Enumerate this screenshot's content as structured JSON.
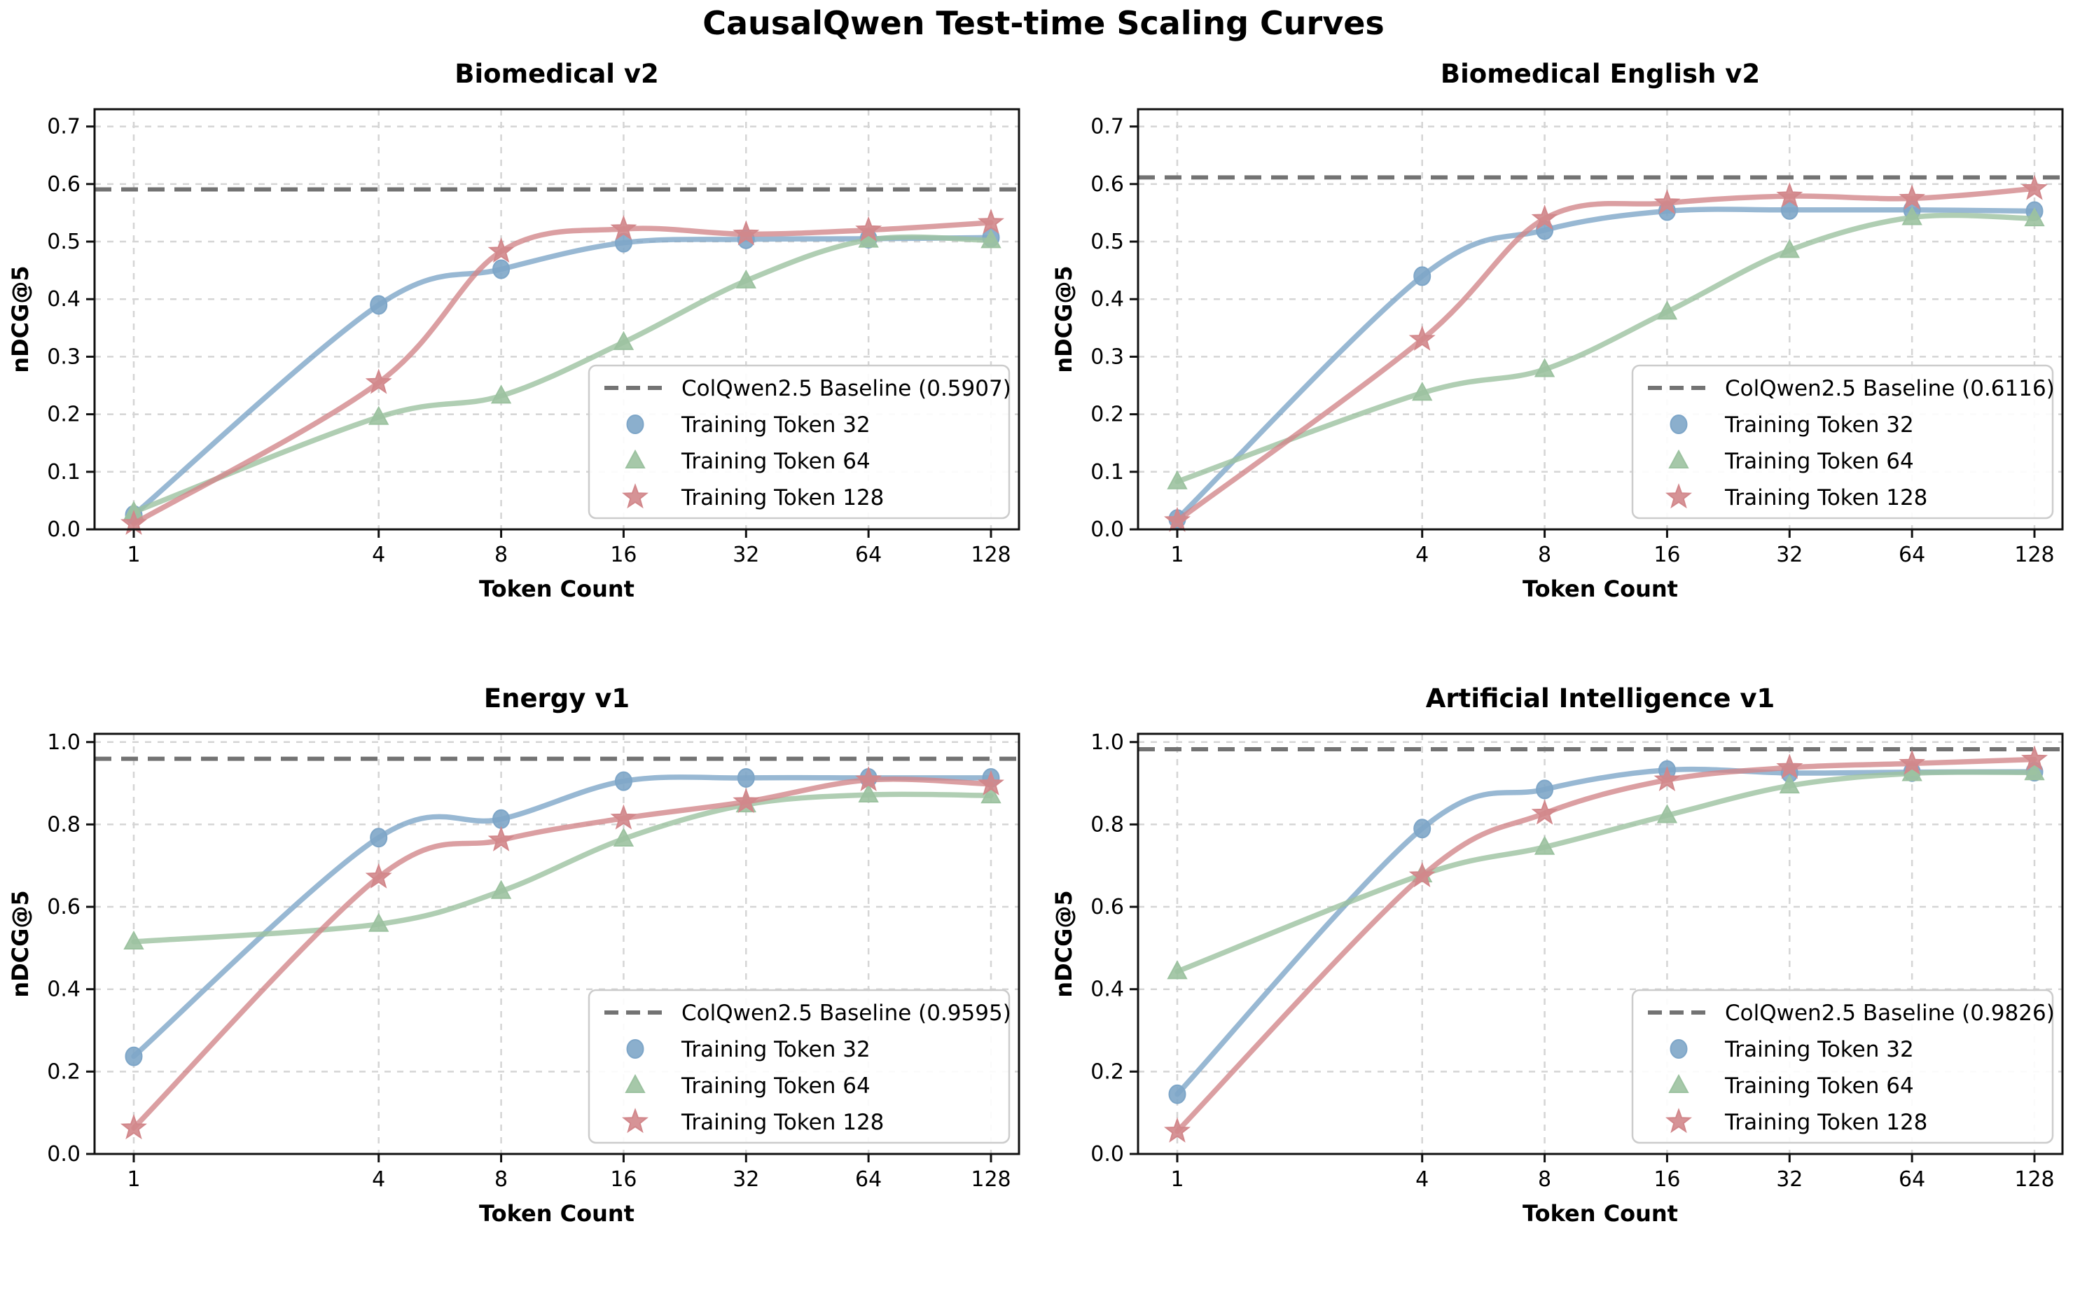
{
  "page_title": "CausalQwen Test-time Scaling Curves",
  "axes": {
    "xlabel": "Token Count",
    "ylabel": "nDCG@5"
  },
  "colors": {
    "token32": "#7EA6C8",
    "token64": "#9CC2A0",
    "token128": "#D2878B",
    "baseline": "#737373",
    "grid": "#D5D5D5",
    "spine": "#111111",
    "text": "#000000",
    "legend_border": "#CCCCCC"
  },
  "chart_data": [
    {
      "type": "line",
      "title": "Biomedical v2",
      "xlabel": "Token Count",
      "ylabel": "nDCG@5",
      "x_scale": "log2",
      "x": [
        1,
        4,
        8,
        16,
        32,
        64,
        128
      ],
      "ylim": [
        0,
        0.73
      ],
      "yticks": [
        0.0,
        0.1,
        0.2,
        0.3,
        0.4,
        0.5,
        0.6,
        0.7
      ],
      "grid": true,
      "legend_position": "lower right",
      "baseline": {
        "label": "ColQwen2.5 Baseline (0.5907)",
        "value": 0.5907
      },
      "series": [
        {
          "name": "Training Token 32",
          "marker": "circle",
          "color_key": "token32",
          "values": [
            0.025,
            0.39,
            0.452,
            0.498,
            0.504,
            0.505,
            0.507
          ]
        },
        {
          "name": "Training Token 64",
          "marker": "triangle",
          "color_key": "token64",
          "values": [
            0.03,
            0.195,
            0.232,
            0.325,
            0.432,
            0.503,
            0.502
          ]
        },
        {
          "name": "Training Token 128",
          "marker": "star",
          "color_key": "token128",
          "values": [
            0.01,
            0.255,
            0.483,
            0.522,
            0.513,
            0.52,
            0.533
          ]
        }
      ]
    },
    {
      "type": "line",
      "title": "Biomedical English v2",
      "xlabel": "Token Count",
      "ylabel": "nDCG@5",
      "x_scale": "log2",
      "x": [
        1,
        4,
        8,
        16,
        32,
        64,
        128
      ],
      "ylim": [
        0,
        0.73
      ],
      "yticks": [
        0.0,
        0.1,
        0.2,
        0.3,
        0.4,
        0.5,
        0.6,
        0.7
      ],
      "grid": true,
      "legend_position": "lower right",
      "baseline": {
        "label": "ColQwen2.5 Baseline (0.6116)",
        "value": 0.6116
      },
      "series": [
        {
          "name": "Training Token 32",
          "marker": "circle",
          "color_key": "token32",
          "values": [
            0.018,
            0.44,
            0.52,
            0.553,
            0.555,
            0.555,
            0.553
          ]
        },
        {
          "name": "Training Token 64",
          "marker": "triangle",
          "color_key": "token64",
          "values": [
            0.083,
            0.237,
            0.278,
            0.378,
            0.485,
            0.542,
            0.54
          ]
        },
        {
          "name": "Training Token 128",
          "marker": "star",
          "color_key": "token128",
          "values": [
            0.015,
            0.33,
            0.54,
            0.567,
            0.579,
            0.575,
            0.592
          ]
        }
      ]
    },
    {
      "type": "line",
      "title": "Energy v1",
      "xlabel": "Token Count",
      "ylabel": "nDCG@5",
      "x_scale": "log2",
      "x": [
        1,
        4,
        8,
        16,
        32,
        64,
        128
      ],
      "ylim": [
        0,
        1.02
      ],
      "yticks": [
        0.0,
        0.2,
        0.4,
        0.6,
        0.8,
        1.0
      ],
      "grid": true,
      "legend_position": "lower right",
      "baseline": {
        "label": "ColQwen2.5 Baseline (0.9595)",
        "value": 0.9595
      },
      "series": [
        {
          "name": "Training Token 32",
          "marker": "circle",
          "color_key": "token32",
          "values": [
            0.237,
            0.768,
            0.813,
            0.905,
            0.913,
            0.913,
            0.913
          ]
        },
        {
          "name": "Training Token 64",
          "marker": "triangle",
          "color_key": "token64",
          "values": [
            0.515,
            0.558,
            0.638,
            0.765,
            0.848,
            0.872,
            0.87
          ]
        },
        {
          "name": "Training Token 128",
          "marker": "star",
          "color_key": "token128",
          "values": [
            0.063,
            0.672,
            0.762,
            0.815,
            0.855,
            0.908,
            0.898
          ]
        }
      ]
    },
    {
      "type": "line",
      "title": "Artificial Intelligence v1",
      "xlabel": "Token Count",
      "ylabel": "nDCG@5",
      "x_scale": "log2",
      "x": [
        1,
        4,
        8,
        16,
        32,
        64,
        128
      ],
      "ylim": [
        0,
        1.02
      ],
      "yticks": [
        0.0,
        0.2,
        0.4,
        0.6,
        0.8,
        1.0
      ],
      "grid": true,
      "legend_position": "lower right",
      "baseline": {
        "label": "ColQwen2.5 Baseline (0.9826)",
        "value": 0.9826
      },
      "series": [
        {
          "name": "Training Token 32",
          "marker": "circle",
          "color_key": "token32",
          "values": [
            0.145,
            0.79,
            0.885,
            0.932,
            0.925,
            0.927,
            0.928
          ]
        },
        {
          "name": "Training Token 64",
          "marker": "triangle",
          "color_key": "token64",
          "values": [
            0.443,
            0.678,
            0.745,
            0.822,
            0.894,
            0.924,
            0.926
          ]
        },
        {
          "name": "Training Token 128",
          "marker": "star",
          "color_key": "token128",
          "values": [
            0.055,
            0.675,
            0.827,
            0.908,
            0.938,
            0.948,
            0.958
          ]
        }
      ]
    }
  ]
}
